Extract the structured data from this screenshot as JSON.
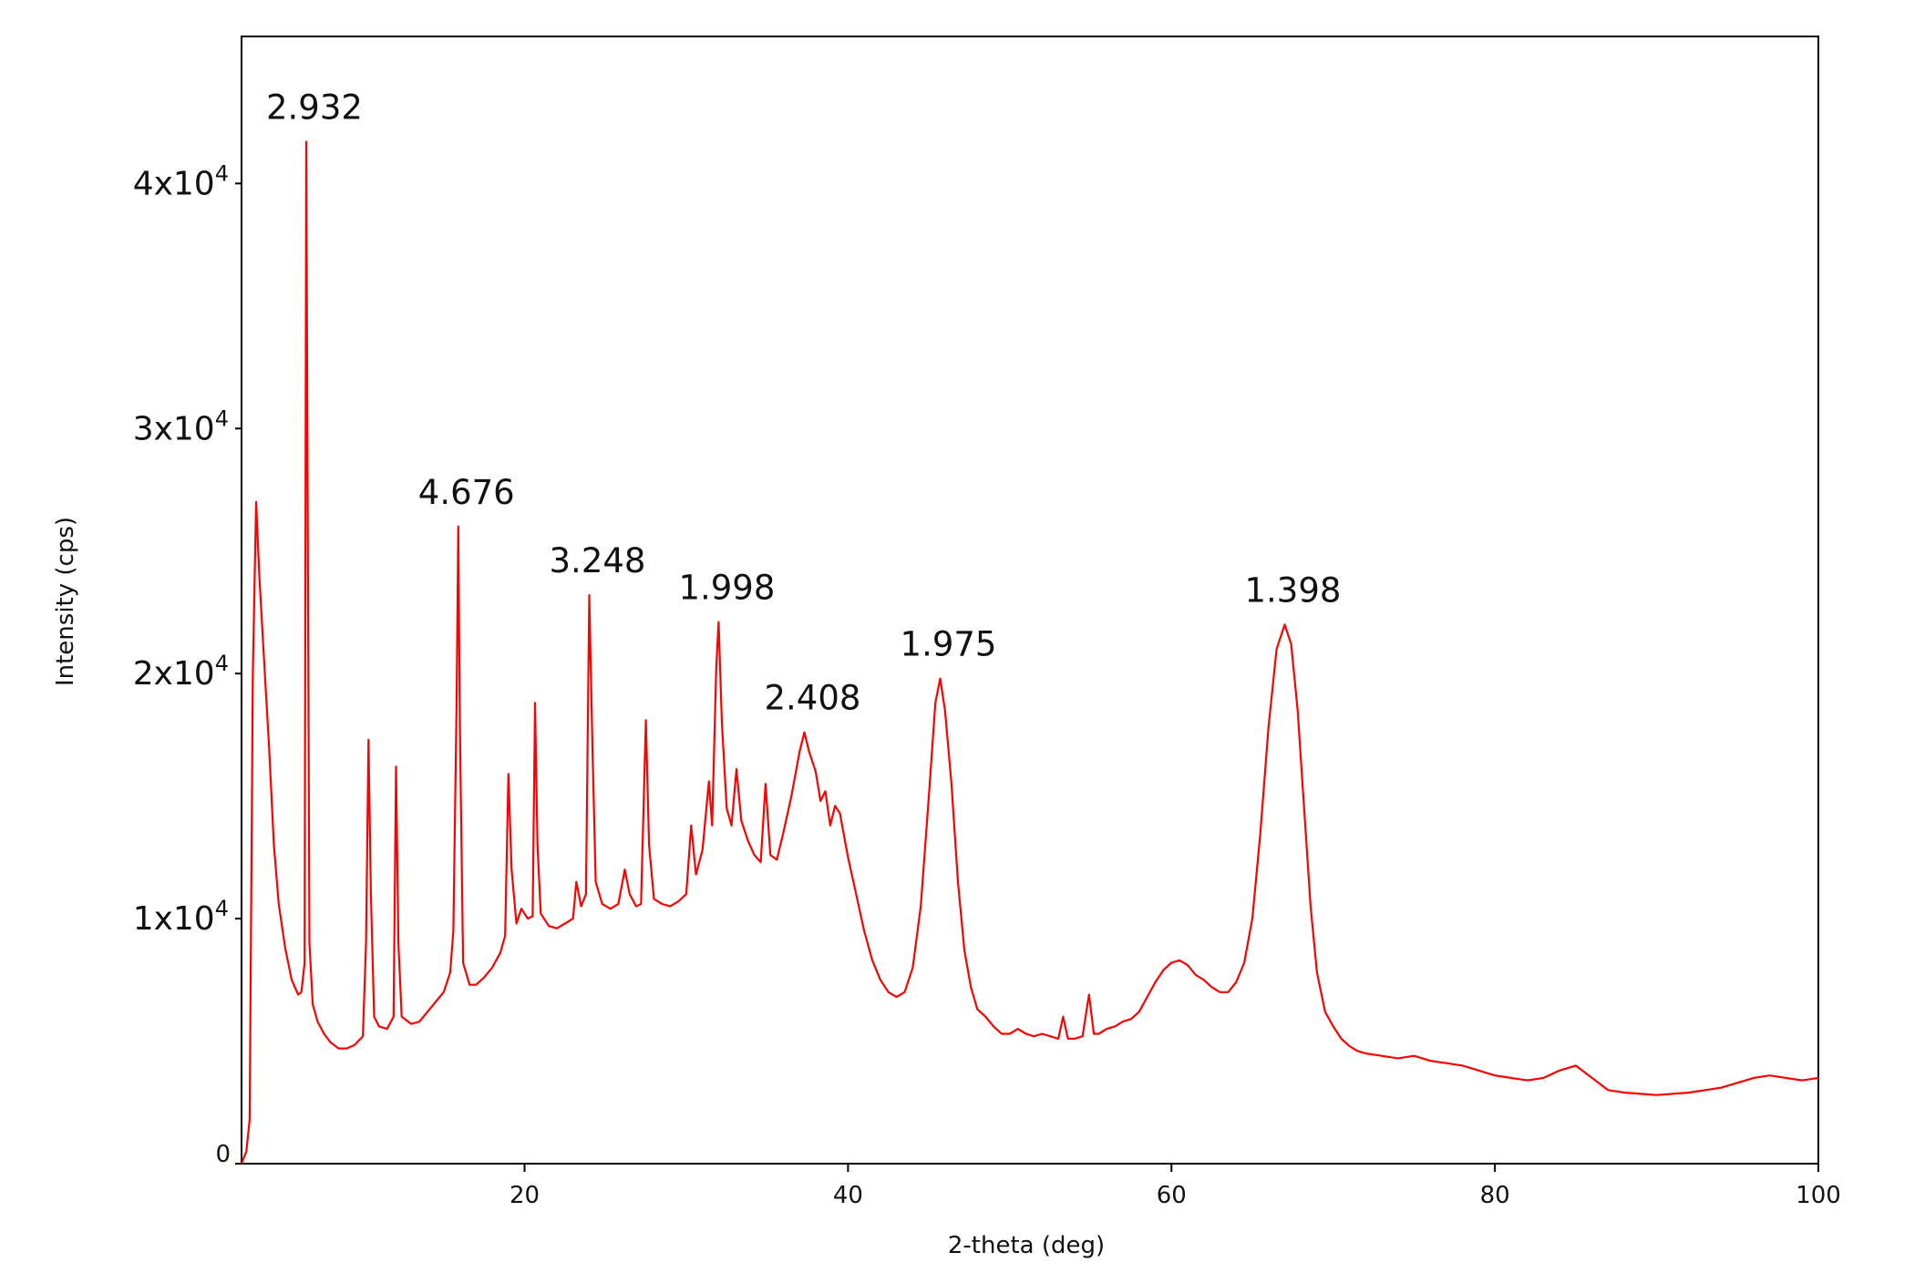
{
  "chart_data": {
    "type": "line",
    "title": "",
    "xlabel": "2-theta (deg)",
    "ylabel": "Intensity (cps)",
    "xlim": [
      2.5,
      100
    ],
    "ylim": [
      0,
      46000
    ],
    "grid": false,
    "line_color": "#ff0000",
    "x_ticks": [
      {
        "value": 20,
        "label": "20"
      },
      {
        "value": 40,
        "label": "40"
      },
      {
        "value": 60,
        "label": "60"
      },
      {
        "value": 80,
        "label": "80"
      },
      {
        "value": 100,
        "label": "100"
      }
    ],
    "y_ticks": [
      {
        "value": 0,
        "label": "0",
        "exp": ""
      },
      {
        "value": 10000,
        "label": "1x10",
        "exp": "4"
      },
      {
        "value": 20000,
        "label": "2x10",
        "exp": "4"
      },
      {
        "value": 30000,
        "label": "3x10",
        "exp": "4"
      },
      {
        "value": 40000,
        "label": "4x10",
        "exp": "4"
      }
    ],
    "peak_annotations": [
      {
        "x": 6.5,
        "y": 41700,
        "text": "2.932"
      },
      {
        "x": 15.9,
        "y": 26000,
        "text": "4.676"
      },
      {
        "x": 24.0,
        "y": 23200,
        "text": "3.248"
      },
      {
        "x": 32.0,
        "y": 22100,
        "text": "1.998"
      },
      {
        "x": 37.3,
        "y": 17600,
        "text": "2.408"
      },
      {
        "x": 45.7,
        "y": 19800,
        "text": "1.975"
      },
      {
        "x": 67.0,
        "y": 22000,
        "text": "1.398"
      }
    ],
    "series": [
      {
        "points": [
          [
            2.5,
            0
          ],
          [
            2.8,
            500
          ],
          [
            3.0,
            1800
          ],
          [
            3.2,
            20000
          ],
          [
            3.4,
            27000
          ],
          [
            3.6,
            24000
          ],
          [
            3.9,
            20500
          ],
          [
            4.2,
            17000
          ],
          [
            4.5,
            13000
          ],
          [
            4.8,
            10600
          ],
          [
            5.2,
            8800
          ],
          [
            5.6,
            7500
          ],
          [
            6.0,
            6900
          ],
          [
            6.2,
            7000
          ],
          [
            6.4,
            8200
          ],
          [
            6.5,
            41700
          ],
          [
            6.7,
            9000
          ],
          [
            6.9,
            6500
          ],
          [
            7.2,
            5800
          ],
          [
            7.6,
            5300
          ],
          [
            8.0,
            4950
          ],
          [
            8.5,
            4700
          ],
          [
            9.0,
            4700
          ],
          [
            9.5,
            4850
          ],
          [
            10.0,
            5200
          ],
          [
            10.2,
            9000
          ],
          [
            10.35,
            17300
          ],
          [
            10.5,
            11000
          ],
          [
            10.7,
            6000
          ],
          [
            11.0,
            5600
          ],
          [
            11.5,
            5500
          ],
          [
            11.9,
            6000
          ],
          [
            12.05,
            16200
          ],
          [
            12.2,
            9000
          ],
          [
            12.4,
            6000
          ],
          [
            13.0,
            5700
          ],
          [
            13.5,
            5800
          ],
          [
            14.0,
            6200
          ],
          [
            14.5,
            6600
          ],
          [
            15.0,
            7000
          ],
          [
            15.4,
            7800
          ],
          [
            15.6,
            9500
          ],
          [
            15.8,
            19000
          ],
          [
            15.9,
            26000
          ],
          [
            16.0,
            18000
          ],
          [
            16.2,
            8200
          ],
          [
            16.6,
            7300
          ],
          [
            17.0,
            7300
          ],
          [
            17.5,
            7600
          ],
          [
            18.0,
            8000
          ],
          [
            18.5,
            8600
          ],
          [
            18.8,
            9300
          ],
          [
            19.0,
            15900
          ],
          [
            19.2,
            12000
          ],
          [
            19.5,
            9800
          ],
          [
            19.8,
            10400
          ],
          [
            20.2,
            10000
          ],
          [
            20.5,
            10100
          ],
          [
            20.65,
            18800
          ],
          [
            20.8,
            13000
          ],
          [
            21.0,
            10200
          ],
          [
            21.5,
            9700
          ],
          [
            22.0,
            9600
          ],
          [
            22.5,
            9800
          ],
          [
            23.0,
            10000
          ],
          [
            23.2,
            11500
          ],
          [
            23.5,
            10500
          ],
          [
            23.8,
            11000
          ],
          [
            24.0,
            23200
          ],
          [
            24.2,
            17000
          ],
          [
            24.4,
            11500
          ],
          [
            24.8,
            10600
          ],
          [
            25.3,
            10400
          ],
          [
            25.8,
            10600
          ],
          [
            26.2,
            12000
          ],
          [
            26.5,
            11000
          ],
          [
            26.9,
            10500
          ],
          [
            27.2,
            10600
          ],
          [
            27.5,
            18100
          ],
          [
            27.7,
            13000
          ],
          [
            28.0,
            10800
          ],
          [
            28.5,
            10600
          ],
          [
            29.0,
            10500
          ],
          [
            29.5,
            10700
          ],
          [
            30.0,
            11000
          ],
          [
            30.3,
            13800
          ],
          [
            30.6,
            11800
          ],
          [
            31.0,
            12800
          ],
          [
            31.4,
            15600
          ],
          [
            31.6,
            13800
          ],
          [
            31.85,
            20200
          ],
          [
            32.0,
            22100
          ],
          [
            32.2,
            18000
          ],
          [
            32.5,
            14500
          ],
          [
            32.8,
            13800
          ],
          [
            33.1,
            16100
          ],
          [
            33.4,
            14000
          ],
          [
            33.8,
            13200
          ],
          [
            34.2,
            12600
          ],
          [
            34.6,
            12300
          ],
          [
            34.9,
            15500
          ],
          [
            35.2,
            12600
          ],
          [
            35.6,
            12400
          ],
          [
            36.0,
            13500
          ],
          [
            36.5,
            15000
          ],
          [
            37.0,
            16800
          ],
          [
            37.3,
            17600
          ],
          [
            37.6,
            16800
          ],
          [
            38.0,
            16000
          ],
          [
            38.3,
            14800
          ],
          [
            38.6,
            15200
          ],
          [
            38.9,
            13800
          ],
          [
            39.2,
            14600
          ],
          [
            39.5,
            14300
          ],
          [
            40.0,
            12500
          ],
          [
            40.5,
            11000
          ],
          [
            41.0,
            9500
          ],
          [
            41.5,
            8300
          ],
          [
            42.0,
            7500
          ],
          [
            42.5,
            7000
          ],
          [
            43.0,
            6800
          ],
          [
            43.5,
            7000
          ],
          [
            44.0,
            8000
          ],
          [
            44.5,
            10500
          ],
          [
            45.0,
            15000
          ],
          [
            45.4,
            18800
          ],
          [
            45.7,
            19800
          ],
          [
            46.0,
            18500
          ],
          [
            46.4,
            15500
          ],
          [
            46.8,
            11500
          ],
          [
            47.2,
            8700
          ],
          [
            47.6,
            7200
          ],
          [
            48.0,
            6300
          ],
          [
            48.5,
            6000
          ],
          [
            49.0,
            5600
          ],
          [
            49.5,
            5300
          ],
          [
            50.0,
            5300
          ],
          [
            50.5,
            5500
          ],
          [
            51.0,
            5300
          ],
          [
            51.5,
            5200
          ],
          [
            52.0,
            5300
          ],
          [
            52.5,
            5200
          ],
          [
            53.0,
            5100
          ],
          [
            53.3,
            6000
          ],
          [
            53.6,
            5100
          ],
          [
            54.0,
            5100
          ],
          [
            54.5,
            5200
          ],
          [
            54.9,
            6900
          ],
          [
            55.2,
            5300
          ],
          [
            55.5,
            5300
          ],
          [
            56.0,
            5500
          ],
          [
            56.5,
            5600
          ],
          [
            57.0,
            5800
          ],
          [
            57.5,
            5900
          ],
          [
            58.0,
            6200
          ],
          [
            58.5,
            6800
          ],
          [
            59.0,
            7400
          ],
          [
            59.5,
            7900
          ],
          [
            60.0,
            8200
          ],
          [
            60.5,
            8300
          ],
          [
            61.0,
            8100
          ],
          [
            61.5,
            7700
          ],
          [
            62.0,
            7500
          ],
          [
            62.5,
            7200
          ],
          [
            63.0,
            7000
          ],
          [
            63.5,
            7000
          ],
          [
            64.0,
            7400
          ],
          [
            64.5,
            8200
          ],
          [
            65.0,
            10000
          ],
          [
            65.5,
            13500
          ],
          [
            66.0,
            17800
          ],
          [
            66.5,
            21000
          ],
          [
            67.0,
            22000
          ],
          [
            67.4,
            21200
          ],
          [
            67.8,
            18500
          ],
          [
            68.2,
            14500
          ],
          [
            68.6,
            10500
          ],
          [
            69.0,
            7800
          ],
          [
            69.5,
            6200
          ],
          [
            70.0,
            5600
          ],
          [
            70.5,
            5100
          ],
          [
            71.0,
            4800
          ],
          [
            71.5,
            4600
          ],
          [
            72.0,
            4500
          ],
          [
            73.0,
            4400
          ],
          [
            74.0,
            4300
          ],
          [
            75.0,
            4400
          ],
          [
            76.0,
            4200
          ],
          [
            77.0,
            4100
          ],
          [
            78.0,
            4000
          ],
          [
            79.0,
            3800
          ],
          [
            80.0,
            3600
          ],
          [
            81.0,
            3500
          ],
          [
            82.0,
            3400
          ],
          [
            83.0,
            3500
          ],
          [
            84.0,
            3800
          ],
          [
            85.0,
            4000
          ],
          [
            86.0,
            3500
          ],
          [
            87.0,
            3000
          ],
          [
            88.0,
            2900
          ],
          [
            89.0,
            2850
          ],
          [
            90.0,
            2800
          ],
          [
            91.0,
            2850
          ],
          [
            92.0,
            2900
          ],
          [
            93.0,
            3000
          ],
          [
            94.0,
            3100
          ],
          [
            95.0,
            3300
          ],
          [
            96.0,
            3500
          ],
          [
            97.0,
            3600
          ],
          [
            98.0,
            3500
          ],
          [
            99.0,
            3400
          ],
          [
            100.0,
            3500
          ]
        ]
      }
    ]
  }
}
